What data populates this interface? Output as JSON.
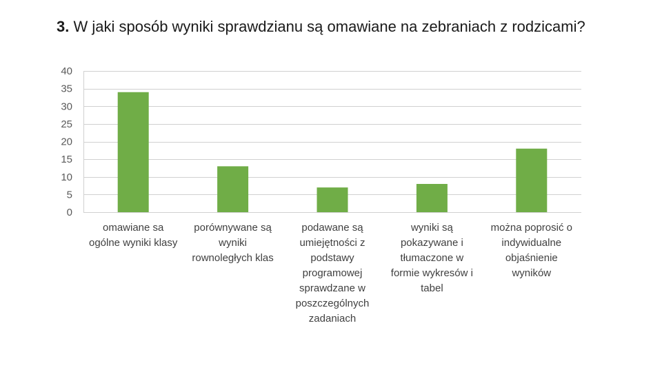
{
  "title": {
    "number": "3.",
    "text": "W jaki sposób wyniki sprawdzianu są omawiane na zebraniach z rodzicami?"
  },
  "chart_data": {
    "type": "bar",
    "categories": [
      "omawiane sa\nogólne wyniki klasy",
      "porównywane są\nwyniki\nrownoległych klas",
      "podawane są\numiejętności z\npodstawy\nprogramowej\nsprawdzane w\nposzczególnych\nzadaniach",
      "wyniki są\npokazywane i\ntłumaczone w\nformie wykresów i\ntabel",
      "można poprosić o\nindywidualne\nobjaśnienie\nwyników"
    ],
    "values": [
      34,
      13,
      7,
      8,
      18
    ],
    "ylim": [
      0,
      40
    ],
    "yticks": [
      0,
      5,
      10,
      15,
      20,
      25,
      30,
      35,
      40
    ],
    "grid": true,
    "legend": "none",
    "bar_color": "#70ad47",
    "grid_color": "#d0d0d0"
  }
}
